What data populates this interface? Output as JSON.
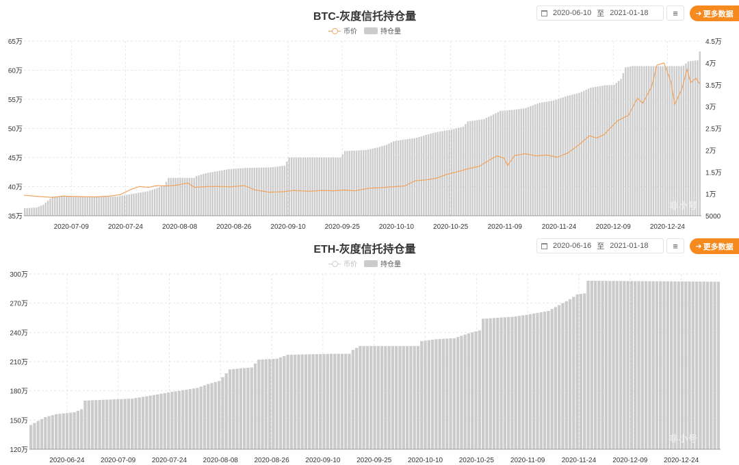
{
  "colors": {
    "bar": "#cbcbcb",
    "price_line": "#f3a25a",
    "price_line_inactive": "#cccccc",
    "accent": "#f68a1e",
    "grid": "#e6e6e6"
  },
  "more_label": "更多数据",
  "menu_icon": "≡",
  "charts": {
    "btc": {
      "title": "BTC-灰度信托持仓量",
      "legend_price": "币价",
      "legend_holdings": "持仓量",
      "date_start": "2020-06-10",
      "date_sep": "至",
      "date_end": "2021-01-18",
      "watermark": "非小号"
    },
    "eth": {
      "title": "ETH-灰度信托持仓量",
      "legend_price": "币价",
      "legend_holdings": "持仓量",
      "date_start": "2020-06-16",
      "date_sep": "至",
      "date_end": "2021-01-18",
      "watermark": "非小号"
    }
  },
  "chart_data": [
    {
      "type": "bar",
      "id": "btc",
      "title": "BTC-灰度信托持仓量",
      "x_tick_labels": [
        "2020-07-09",
        "2020-07-24",
        "2020-08-08",
        "2020-08-26",
        "2020-09-10",
        "2020-09-25",
        "2020-10-10",
        "2020-10-25",
        "2020-11-09",
        "2020-11-24",
        "2020-12-09",
        "2020-12-24"
      ],
      "y_left_ticks": [
        "35万",
        "40万",
        "45万",
        "50万",
        "55万",
        "60万",
        "65万"
      ],
      "y_left_values": [
        350000,
        400000,
        450000,
        500000,
        550000,
        600000,
        650000
      ],
      "ylim_left": [
        350000,
        650000
      ],
      "y_right_ticks": [
        "5000",
        "1万",
        "1.5万",
        "2万",
        "2.5万",
        "3万",
        "3.5万",
        "4万",
        "4.5万"
      ],
      "y_right_values": [
        5000,
        10000,
        15000,
        20000,
        25000,
        30000,
        35000,
        40000,
        45000
      ],
      "ylim_right": [
        5000,
        45000
      ],
      "legend_visible": [
        "币价",
        "持仓量"
      ],
      "grid": true,
      "series": [
        {
          "name": "持仓量",
          "type": "bar",
          "axis": "left",
          "keypoints": [
            [
              0,
              363000
            ],
            [
              5,
              364000
            ],
            [
              8,
              369000
            ],
            [
              12,
              383000
            ],
            [
              40,
              383000
            ],
            [
              47,
              388000
            ],
            [
              53,
              392000
            ],
            [
              56,
              396000
            ],
            [
              60,
              402000
            ],
            [
              62,
              415000
            ],
            [
              73,
              415000
            ],
            [
              74,
              418000
            ],
            [
              78,
              423000
            ],
            [
              88,
              430000
            ],
            [
              95,
              432000
            ],
            [
              106,
              433000
            ],
            [
              112,
              436000
            ],
            [
              114,
              450000
            ],
            [
              136,
              450000
            ],
            [
              138,
              461000
            ],
            [
              147,
              463000
            ],
            [
              152,
              467000
            ],
            [
              156,
              472000
            ],
            [
              159,
              478000
            ],
            [
              164,
              481000
            ],
            [
              169,
              484000
            ],
            [
              174,
              490000
            ],
            [
              178,
              494000
            ],
            [
              184,
              498000
            ],
            [
              189,
              503000
            ],
            [
              191,
              512000
            ],
            [
              198,
              516000
            ],
            [
              205,
              530000
            ],
            [
              211,
              532000
            ],
            [
              216,
              535000
            ],
            [
              222,
              544000
            ],
            [
              228,
              548000
            ],
            [
              234,
              556000
            ],
            [
              239,
              561000
            ],
            [
              244,
              570000
            ],
            [
              250,
              574000
            ],
            [
              254,
              575000
            ],
            [
              257,
              585000
            ],
            [
              259,
              605000
            ],
            [
              262,
              607000
            ],
            [
              283,
              607000
            ],
            [
              284,
              608000
            ],
            [
              286,
              615000
            ],
            [
              290,
              617000
            ],
            [
              291,
              632000
            ]
          ]
        },
        {
          "name": "币价",
          "type": "line",
          "axis": "right",
          "keypoints": [
            [
              0,
              9700
            ],
            [
              8,
              9400
            ],
            [
              16,
              9200
            ],
            [
              22,
              9500
            ],
            [
              30,
              9400
            ],
            [
              40,
              9300
            ],
            [
              48,
              9500
            ],
            [
              54,
              9800
            ],
            [
              60,
              11000
            ],
            [
              65,
              11700
            ],
            [
              70,
              11500
            ],
            [
              75,
              11900
            ],
            [
              80,
              11800
            ],
            [
              86,
              12000
            ],
            [
              92,
              12500
            ],
            [
              96,
              11500
            ],
            [
              104,
              11700
            ],
            [
              112,
              11700
            ],
            [
              116,
              11600
            ],
            [
              124,
              11900
            ],
            [
              130,
              10900
            ],
            [
              138,
              10400
            ],
            [
              146,
              10500
            ],
            [
              152,
              10800
            ],
            [
              160,
              10600
            ],
            [
              168,
              10800
            ],
            [
              174,
              10700
            ],
            [
              180,
              10900
            ],
            [
              186,
              10700
            ],
            [
              194,
              11300
            ],
            [
              200,
              11400
            ],
            [
              206,
              11600
            ],
            [
              214,
              11800
            ],
            [
              220,
              13000
            ],
            [
              226,
              13200
            ],
            [
              232,
              13600
            ],
            [
              238,
              14500
            ],
            [
              244,
              15100
            ],
            [
              250,
              15800
            ],
            [
              256,
              16300
            ],
            [
              262,
              17800
            ],
            [
              266,
              18700
            ],
            [
              270,
              18200
            ],
            [
              272,
              16500
            ],
            [
              276,
              18800
            ],
            [
              282,
              19200
            ],
            [
              288,
              18700
            ],
            [
              294,
              18900
            ],
            [
              300,
              18400
            ],
            [
              306,
              19400
            ],
            [
              312,
              21200
            ],
            [
              318,
              23300
            ],
            [
              322,
              22800
            ],
            [
              326,
              23500
            ],
            [
              334,
              26800
            ],
            [
              340,
              28000
            ],
            [
              345,
              31900
            ],
            [
              348,
              30800
            ],
            [
              353,
              34500
            ],
            [
              356,
              39500
            ],
            [
              360,
              40000
            ],
            [
              364,
              35500
            ],
            [
              366,
              30500
            ],
            [
              370,
              34000
            ],
            [
              373,
              38500
            ],
            [
              375,
              35500
            ],
            [
              378,
              36500
            ],
            [
              380,
              35200
            ]
          ]
        }
      ]
    },
    {
      "type": "bar",
      "id": "eth",
      "title": "ETH-灰度信托持仓量",
      "x_tick_labels": [
        "2020-06-24",
        "2020-07-09",
        "2020-07-24",
        "2020-08-08",
        "2020-08-26",
        "2020-09-10",
        "2020-09-25",
        "2020-10-10",
        "2020-10-25",
        "2020-11-09",
        "2020-11-24",
        "2020-12-09",
        "2020-12-24"
      ],
      "y_left_ticks": [
        "120万",
        "150万",
        "180万",
        "210万",
        "240万",
        "270万",
        "300万"
      ],
      "y_left_values": [
        1200000,
        1500000,
        1800000,
        2100000,
        2400000,
        2700000,
        3000000
      ],
      "ylim_left": [
        1200000,
        3000000
      ],
      "legend_visible": [
        "持仓量"
      ],
      "legend_inactive": [
        "币价"
      ],
      "grid": true,
      "series": [
        {
          "name": "持仓量",
          "type": "bar",
          "axis": "left",
          "keypoints": [
            [
              0,
              1450000
            ],
            [
              2,
              1490000
            ],
            [
              4,
              1530000
            ],
            [
              7,
              1560000
            ],
            [
              12,
              1580000
            ],
            [
              14,
              1610000
            ],
            [
              15,
              1700000
            ],
            [
              28,
              1720000
            ],
            [
              33,
              1750000
            ],
            [
              39,
              1790000
            ],
            [
              41,
              1800000
            ],
            [
              46,
              1830000
            ],
            [
              49,
              1870000
            ],
            [
              52,
              1900000
            ],
            [
              55,
              2020000
            ],
            [
              61,
              2040000
            ],
            [
              63,
              2120000
            ],
            [
              68,
              2130000
            ],
            [
              71,
              2170000
            ],
            [
              83,
              2180000
            ],
            [
              88,
              2180000
            ],
            [
              89,
              2220000
            ],
            [
              91,
              2260000
            ],
            [
              107,
              2260000
            ],
            [
              108,
              2310000
            ],
            [
              112,
              2330000
            ],
            [
              117,
              2340000
            ],
            [
              121,
              2390000
            ],
            [
              124,
              2420000
            ],
            [
              125,
              2540000
            ],
            [
              129,
              2550000
            ],
            [
              133,
              2560000
            ],
            [
              137,
              2580000
            ],
            [
              140,
              2600000
            ],
            [
              143,
              2620000
            ],
            [
              145,
              2660000
            ],
            [
              147,
              2700000
            ],
            [
              149,
              2740000
            ],
            [
              151,
              2790000
            ],
            [
              153,
              2800000
            ],
            [
              154,
              2930000
            ],
            [
              190,
              2920000
            ]
          ]
        }
      ]
    }
  ]
}
